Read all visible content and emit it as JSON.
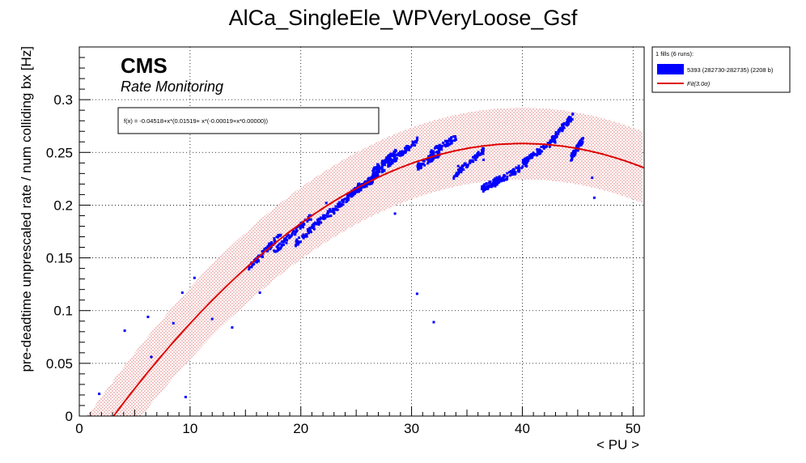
{
  "chart_data": {
    "type": "scatter",
    "title": "AlCa_SingleEle_WPVeryLoose_Gsf",
    "xlabel": "< PU >",
    "ylabel": "pre-deadtime unprescaled rate / num colliding bx [Hz]",
    "xlim": [
      0,
      51
    ],
    "ylim": [
      0,
      0.35
    ],
    "xticks": [
      0,
      10,
      20,
      30,
      40,
      50
    ],
    "yticks": [
      0,
      0.05,
      0.1,
      0.15,
      0.2,
      0.25,
      0.3
    ],
    "grid": true,
    "brand": "CMS",
    "brand_subtitle": "Rate Monitoring",
    "fit_formula": "f(x) = -0.04518+x*(0.01519+ x*(-0.00019+x*0.00000))",
    "fit": {
      "coefficients": [
        -0.04518,
        0.01519,
        -0.00019,
        0.0
      ],
      "band_sigma": 3.0,
      "band_half_width": 0.034,
      "x_range": [
        3.0,
        51
      ],
      "color": "#dd0000"
    },
    "legend": {
      "position": "top-right",
      "header": "1 fills (6 runs):",
      "entries": [
        {
          "label": "5393 (282730-282735) (2208 b)",
          "color": "#0000ff",
          "kind": "box"
        },
        {
          "label": "Fit(3.0σ)",
          "color": "#dd0000",
          "kind": "line"
        }
      ]
    },
    "series": [
      {
        "name": "5393 (282730-282735) (2208 b)",
        "color": "#0000ff",
        "segments": [
          {
            "x": [
              15.3,
              18.2
            ],
            "y": [
              0.14,
              0.172
            ]
          },
          {
            "x": [
              17.5,
              21.0
            ],
            "y": [
              0.155,
              0.19
            ]
          },
          {
            "x": [
              19.5,
              22.7
            ],
            "y": [
              0.163,
              0.195
            ]
          },
          {
            "x": [
              22.5,
              25.5
            ],
            "y": [
              0.19,
              0.22
            ]
          },
          {
            "x": [
              24.0,
              26.6
            ],
            "y": [
              0.207,
              0.225
            ]
          },
          {
            "x": [
              25.2,
              28.4
            ],
            "y": [
              0.215,
              0.243
            ]
          },
          {
            "x": [
              26.5,
              28.6
            ],
            "y": [
              0.232,
              0.25
            ]
          },
          {
            "x": [
              28.0,
              30.6
            ],
            "y": [
              0.24,
              0.262
            ]
          },
          {
            "x": [
              30.5,
              32.6
            ],
            "y": [
              0.236,
              0.25
            ]
          },
          {
            "x": [
              31.5,
              34.0
            ],
            "y": [
              0.248,
              0.264
            ]
          },
          {
            "x": [
              33.8,
              36.5
            ],
            "y": [
              0.228,
              0.252
            ]
          },
          {
            "x": [
              36.3,
              38.0
            ],
            "y": [
              0.215,
              0.225
            ]
          },
          {
            "x": [
              37.5,
              40.5
            ],
            "y": [
              0.22,
              0.24
            ]
          },
          {
            "x": [
              40.0,
              43.0
            ],
            "y": [
              0.24,
              0.262
            ]
          },
          {
            "x": [
              42.5,
              44.6
            ],
            "y": [
              0.26,
              0.285
            ]
          },
          {
            "x": [
              44.4,
              45.5
            ],
            "y": [
              0.245,
              0.262
            ]
          }
        ],
        "outliers": [
          [
            1.8,
            0.021
          ],
          [
            4.1,
            0.081
          ],
          [
            6.2,
            0.094
          ],
          [
            6.5,
            0.056
          ],
          [
            8.5,
            0.088
          ],
          [
            9.3,
            0.117
          ],
          [
            9.6,
            0.018
          ],
          [
            10.4,
            0.131
          ],
          [
            12.0,
            0.092
          ],
          [
            13.8,
            0.084
          ],
          [
            16.3,
            0.117
          ],
          [
            22.3,
            0.202
          ],
          [
            28.5,
            0.192
          ],
          [
            30.5,
            0.116
          ],
          [
            32.0,
            0.089
          ],
          [
            34.2,
            0.237
          ],
          [
            36.5,
            0.243
          ],
          [
            46.3,
            0.226
          ],
          [
            46.5,
            0.207
          ]
        ]
      }
    ]
  }
}
